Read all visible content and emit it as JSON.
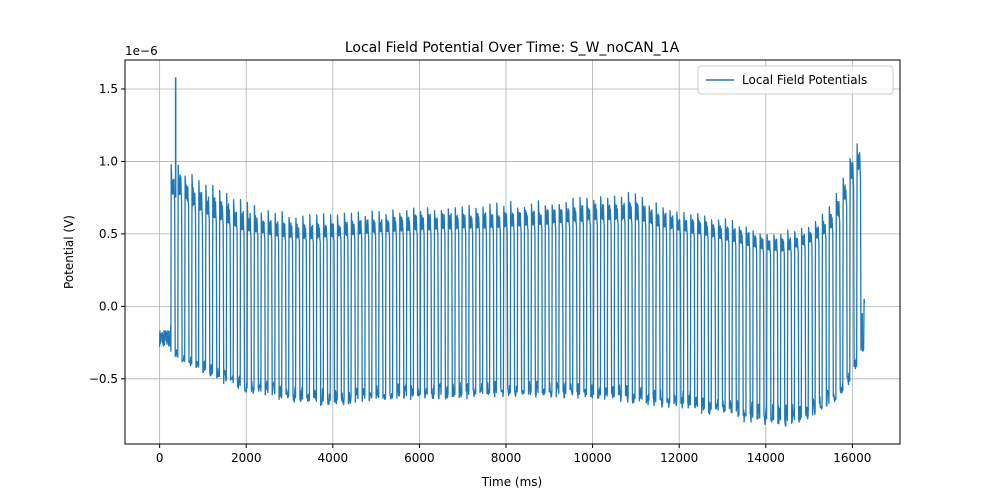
{
  "chart_data": {
    "type": "line",
    "title": "Local Field Potential Over Time: S_W_noCAN_1A",
    "xlabel": "Time (ms)",
    "ylabel": "Potential (V)",
    "y_offset_label": "1e−6",
    "xlim": [
      -800,
      17100
    ],
    "ylim": [
      -0.95,
      1.7
    ],
    "x_ticks": [
      0,
      2000,
      4000,
      6000,
      8000,
      10000,
      12000,
      14000,
      16000
    ],
    "y_ticks": [
      -0.5,
      0.0,
      0.5,
      1.0,
      1.5
    ],
    "y_tick_labels": [
      "−0.5",
      "0.0",
      "0.5",
      "1.0",
      "1.5"
    ],
    "grid": true,
    "legend": {
      "position": "top-right"
    },
    "colors": {
      "series": "#1f77b4",
      "grid": "#b0b0b0"
    },
    "series": [
      {
        "name": "Local Field Potentials",
        "envelope_x": [
          0,
          250,
          300,
          500,
          1000,
          1500,
          2000,
          2500,
          3000,
          3500,
          4000,
          5000,
          6000,
          7000,
          8000,
          9000,
          10000,
          10500,
          11000,
          11500,
          12000,
          12500,
          13000,
          13500,
          14000,
          14500,
          15000,
          15500,
          15800,
          16000,
          16200
        ],
        "envelope_max": [
          -0.17,
          -0.2,
          1.0,
          1.0,
          0.87,
          0.82,
          0.73,
          0.68,
          0.65,
          0.64,
          0.64,
          0.67,
          0.7,
          0.71,
          0.72,
          0.74,
          0.78,
          0.77,
          0.8,
          0.72,
          0.68,
          0.66,
          0.63,
          0.58,
          0.53,
          0.52,
          0.57,
          0.68,
          0.85,
          1.07,
          1.14
        ],
        "envelope_min": [
          -0.3,
          -0.27,
          -0.35,
          -0.4,
          -0.46,
          -0.54,
          -0.6,
          -0.63,
          -0.66,
          -0.69,
          -0.68,
          -0.66,
          -0.64,
          -0.64,
          -0.62,
          -0.63,
          -0.64,
          -0.66,
          -0.67,
          -0.7,
          -0.7,
          -0.74,
          -0.76,
          -0.8,
          -0.82,
          -0.83,
          -0.78,
          -0.68,
          -0.58,
          -0.45,
          -0.3
        ],
        "plateau": [
          -0.22,
          -0.22,
          0.8,
          0.8,
          0.68,
          0.62,
          0.55,
          0.52,
          0.5,
          0.49,
          0.5,
          0.53,
          0.55,
          0.56,
          0.57,
          0.59,
          0.62,
          0.62,
          0.63,
          0.58,
          0.55,
          0.52,
          0.49,
          0.45,
          0.41,
          0.4,
          0.45,
          0.54,
          0.7,
          0.9,
          0.98
        ],
        "spike": {
          "x": 370,
          "y": 1.58
        },
        "cycle_period_ms": 160,
        "end": {
          "x": 16280,
          "y": 0.02
        }
      }
    ]
  }
}
